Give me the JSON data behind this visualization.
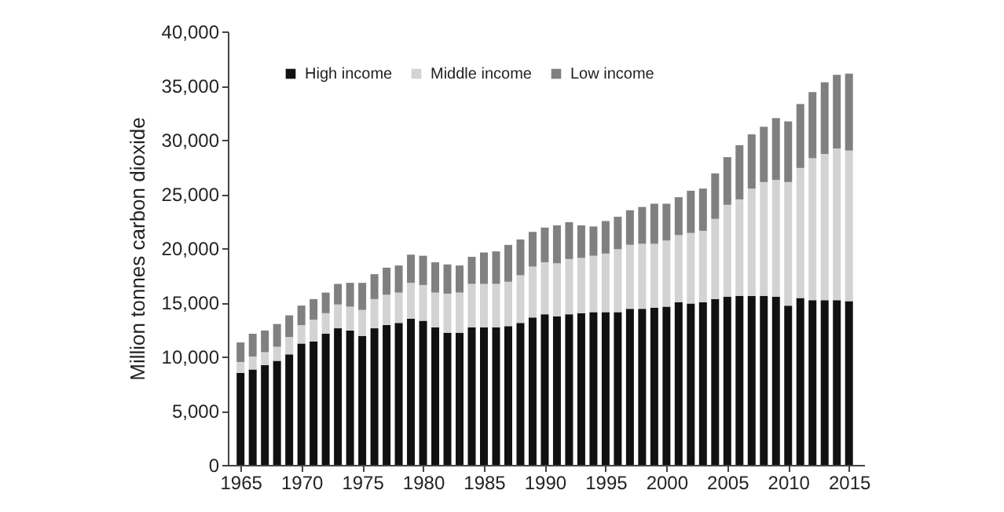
{
  "chart_data": {
    "type": "bar",
    "stacked": true,
    "ylabel": "Million tonnes carbon dioxide",
    "x": [
      1965,
      1966,
      1967,
      1968,
      1969,
      1970,
      1971,
      1972,
      1973,
      1974,
      1975,
      1976,
      1977,
      1978,
      1979,
      1980,
      1981,
      1982,
      1983,
      1984,
      1985,
      1986,
      1987,
      1988,
      1989,
      1990,
      1991,
      1992,
      1993,
      1994,
      1995,
      1996,
      1997,
      1998,
      1999,
      2000,
      2001,
      2002,
      2003,
      2004,
      2005,
      2006,
      2007,
      2008,
      2009,
      2010,
      2011,
      2012,
      2013,
      2014,
      2015
    ],
    "series": [
      {
        "name": "High income",
        "color": "#111111",
        "values": [
          8500,
          8800,
          9200,
          9600,
          10200,
          11200,
          11400,
          12100,
          12600,
          12400,
          11900,
          12600,
          12900,
          13100,
          13500,
          13300,
          12700,
          12200,
          12200,
          12700,
          12700,
          12700,
          12800,
          13100,
          13600,
          13900,
          13700,
          13900,
          14000,
          14100,
          14100,
          14100,
          14400,
          14400,
          14500,
          14600,
          15000,
          14900,
          15000,
          15300,
          15500,
          15600,
          15600,
          15600,
          15500,
          14700,
          15400,
          15200,
          15200,
          15200,
          15100
        ]
      },
      {
        "name": "Middle income",
        "color": "#d3d3d3",
        "values": [
          1000,
          1200,
          1200,
          1300,
          1600,
          1700,
          2000,
          1900,
          2200,
          2200,
          2400,
          2700,
          2800,
          2800,
          3300,
          3300,
          3200,
          3600,
          3700,
          4000,
          4000,
          4000,
          4100,
          4400,
          4700,
          4800,
          4900,
          5100,
          5100,
          5200,
          5400,
          5800,
          5900,
          6000,
          5900,
          6100,
          6200,
          6500,
          6600,
          7400,
          8500,
          8900,
          9900,
          10500,
          10800,
          11400,
          12000,
          13100,
          13500,
          14000,
          13900
        ]
      },
      {
        "name": "Low income",
        "color": "#808080",
        "values": [
          1800,
          2100,
          2000,
          2100,
          2000,
          1800,
          1900,
          1900,
          1900,
          2200,
          2500,
          2300,
          2500,
          2500,
          2600,
          2700,
          2800,
          2700,
          2500,
          2500,
          2900,
          3000,
          3400,
          3300,
          3200,
          3200,
          3500,
          3400,
          3000,
          2700,
          3000,
          3000,
          3200,
          3400,
          3700,
          3400,
          3500,
          3900,
          3900,
          4200,
          4400,
          5000,
          5000,
          5100,
          5700,
          5600,
          5900,
          6100,
          6600,
          6800,
          7100
        ]
      }
    ],
    "xlim": [
      1964.6,
      2015.6
    ],
    "xticks": [
      1965,
      1970,
      1975,
      1980,
      1985,
      1990,
      1995,
      2000,
      2005,
      2010,
      2015
    ],
    "ylim": [
      0,
      40000
    ],
    "yticks": [
      0,
      {
        "value": 5000,
        "label": "5,000"
      },
      {
        "value": 10000,
        "label": "10,000"
      },
      {
        "value": 15000,
        "label": "15,000"
      },
      {
        "value": 20000,
        "label": "20,000"
      },
      {
        "value": 25000,
        "label": "25,000"
      },
      {
        "value": 30000,
        "label": "30,000"
      },
      {
        "value": 35000,
        "label": "35,000"
      },
      {
        "value": 40000,
        "label": "40,000"
      }
    ],
    "legend": "top left",
    "grid": false
  }
}
